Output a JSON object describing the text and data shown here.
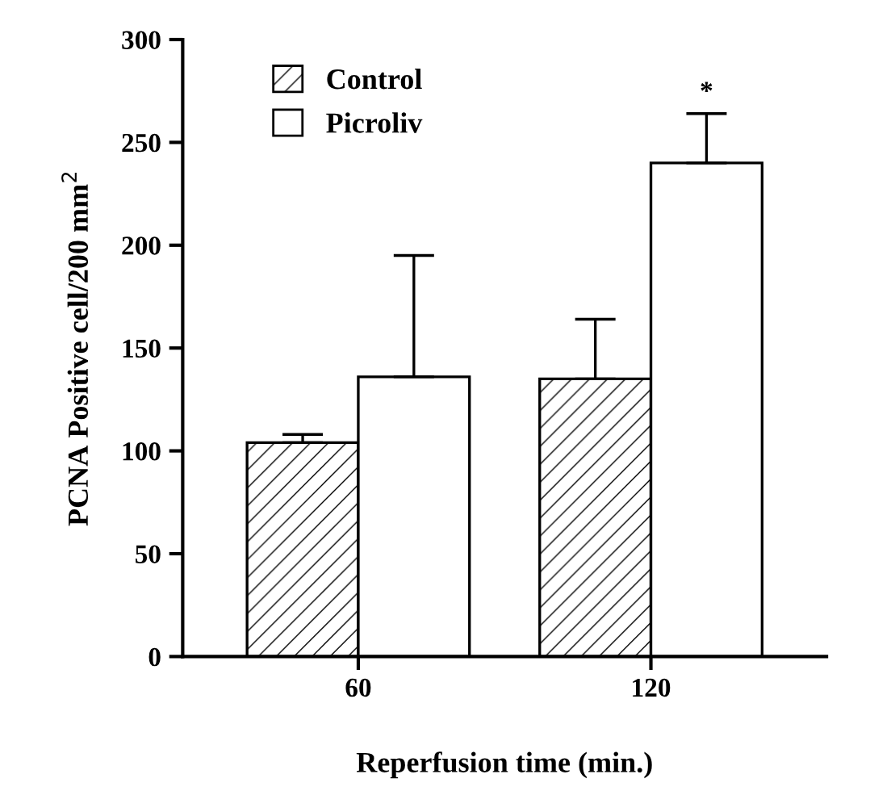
{
  "chart_data": {
    "type": "bar",
    "xlabel": "Reperfusion time (min.)",
    "ylabel": "PCNA Positive cell/200 mm$^{2}$",
    "categories": [
      "60",
      "120"
    ],
    "series": [
      {
        "name": "Control",
        "color": "#000000",
        "values": [
          104,
          135
        ],
        "errors": [
          [
            104,
            108
          ],
          [
            135,
            164
          ]
        ]
      },
      {
        "name": "Picroliv",
        "color": "#ffffff",
        "values": [
          136,
          240
        ],
        "errors": [
          [
            136,
            195
          ],
          [
            240,
            264
          ]
        ]
      }
    ],
    "ylim": [
      0,
      300
    ],
    "yticks": [
      0,
      50,
      100,
      150,
      200,
      250,
      300
    ],
    "legend": "top left",
    "grid": false,
    "annotations": [
      "*"
    ]
  }
}
